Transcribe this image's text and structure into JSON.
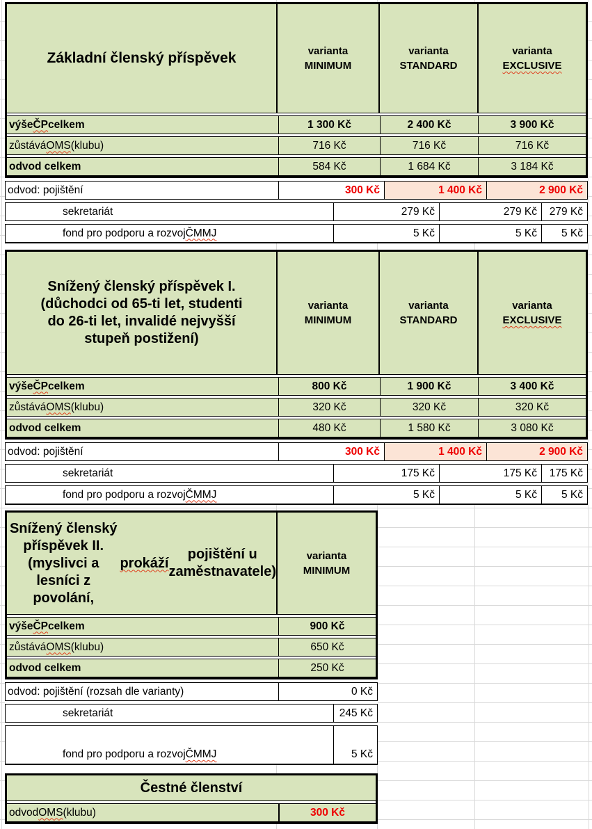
{
  "sheet": {
    "colors": {
      "green": "#d8e4bc",
      "peach": "#fce4d6",
      "red": "#ee0000",
      "grid": "#d9d9d9"
    },
    "currency_suffix": "Kč"
  },
  "tables": [
    {
      "name": "basic-fee",
      "title": "Základní členský příspěvek",
      "title_misspelled": [],
      "variants": [
        {
          "line1": "varianta",
          "line2": "MINIMUM",
          "misspelled": false
        },
        {
          "line1": "varianta",
          "line2": "STANDARD",
          "misspelled": false
        },
        {
          "line1": "varianta",
          "line2": "EXCLUSIVE",
          "misspelled": true
        }
      ],
      "green_rows": [
        {
          "label": "výše ČP celkem",
          "label_bold": true,
          "misspelled": [
            "ČP"
          ],
          "values": [
            "1 300 Kč",
            "2 400 Kč",
            "3 900 Kč"
          ],
          "values_bold": true
        },
        {
          "label": "zůstává OMS (klubu)",
          "label_bold": false,
          "misspelled": [
            "OMS"
          ],
          "values": [
            "716 Kč",
            "716 Kč",
            "716 Kč"
          ],
          "values_bold": false
        },
        {
          "label": "odvod celkem",
          "label_bold": true,
          "misspelled": [],
          "values": [
            "584 Kč",
            "1 684 Kč",
            "3 184 Kč"
          ],
          "values_bold": false
        }
      ],
      "white_rows": [
        {
          "label": "odvod: pojištění",
          "indent": false,
          "misspelled": [],
          "values": [
            "300 Kč",
            "1 400 Kč",
            "2 900 Kč"
          ],
          "red": true,
          "peach_cells": [
            1,
            2
          ],
          "tall": false
        },
        {
          "label": "sekretariát",
          "indent": true,
          "misspelled": [],
          "values": [
            "279 Kč",
            "279 Kč",
            "279 Kč"
          ],
          "red": false,
          "peach_cells": [],
          "tall": false
        },
        {
          "label": "fond pro podporu a rozvoj ČMMJ",
          "indent": true,
          "misspelled": [
            "ČMMJ"
          ],
          "values": [
            "5 Kč",
            "5 Kč",
            "5 Kč"
          ],
          "red": false,
          "peach_cells": [],
          "tall": false
        }
      ]
    },
    {
      "name": "reduced-fee-1",
      "title": "Snížený členský příspěvek I.\n(důchodci od 65-ti let, studenti\ndo 26-ti let, invalidé nejvyšší\nstupeň postižení)",
      "title_misspelled": [],
      "variants": [
        {
          "line1": "varianta",
          "line2": "MINIMUM",
          "misspelled": false
        },
        {
          "line1": "varianta",
          "line2": "STANDARD",
          "misspelled": false
        },
        {
          "line1": "varianta",
          "line2": "EXCLUSIVE",
          "misspelled": true
        }
      ],
      "green_rows": [
        {
          "label": "výše ČP celkem",
          "label_bold": true,
          "misspelled": [
            "ČP"
          ],
          "values": [
            "800 Kč",
            "1 900 Kč",
            "3 400 Kč"
          ],
          "values_bold": true
        },
        {
          "label": "zůstává OMS (klubu)",
          "label_bold": false,
          "misspelled": [
            "OMS"
          ],
          "values": [
            "320 Kč",
            "320 Kč",
            "320 Kč"
          ],
          "values_bold": false
        },
        {
          "label": "odvod celkem",
          "label_bold": true,
          "misspelled": [],
          "values": [
            "480 Kč",
            "1 580 Kč",
            "3 080 Kč"
          ],
          "values_bold": false
        }
      ],
      "white_rows": [
        {
          "label": "odvod: pojištění",
          "indent": false,
          "misspelled": [],
          "values": [
            "300 Kč",
            "1 400 Kč",
            "2 900 Kč"
          ],
          "red": true,
          "peach_cells": [
            1,
            2
          ],
          "tall": false
        },
        {
          "label": "sekretariát",
          "indent": true,
          "misspelled": [],
          "values": [
            "175 Kč",
            "175 Kč",
            "175 Kč"
          ],
          "red": false,
          "peach_cells": [],
          "tall": false
        },
        {
          "label": "fond pro podporu a rozvoj ČMMJ",
          "indent": true,
          "misspelled": [
            "ČMMJ"
          ],
          "values": [
            "5 Kč",
            "5 Kč",
            "5 Kč"
          ],
          "red": false,
          "peach_cells": [],
          "tall": false
        }
      ]
    },
    {
      "name": "reduced-fee-2",
      "title": "Snížený členský příspěvek II.\n(myslivci a lesníci z povolání,\nprokáží pojištění u\nzaměstnavatele)",
      "title_misspelled": [
        "prokáží"
      ],
      "variants": [
        {
          "line1": "varianta",
          "line2": "MINIMUM",
          "misspelled": false
        }
      ],
      "green_rows": [
        {
          "label": "výše ČP celkem",
          "label_bold": true,
          "misspelled": [
            "ČP"
          ],
          "values": [
            "900 Kč"
          ],
          "values_bold": true
        },
        {
          "label": "zůstává OMS (klubu)",
          "label_bold": false,
          "misspelled": [
            "OMS"
          ],
          "values": [
            "650 Kč"
          ],
          "values_bold": false
        },
        {
          "label": "odvod celkem",
          "label_bold": true,
          "misspelled": [],
          "values": [
            "250 Kč"
          ],
          "values_bold": false
        }
      ],
      "white_rows": [
        {
          "label": "odvod: pojištění (rozsah dle varianty)",
          "indent": false,
          "misspelled": [],
          "values": [
            "0 Kč"
          ],
          "red": false,
          "peach_cells": [],
          "tall": false
        },
        {
          "label": "sekretariát",
          "indent": true,
          "misspelled": [],
          "values": [
            "245 Kč"
          ],
          "red": false,
          "peach_cells": [],
          "tall": false
        },
        {
          "label": "fond pro podporu a rozvoj ČMMJ",
          "indent": true,
          "misspelled": [
            "ČMMJ"
          ],
          "values": [
            "5 Kč"
          ],
          "red": false,
          "peach_cells": [],
          "tall": true
        }
      ]
    }
  ],
  "honorary": {
    "name": "honorary-membership",
    "title": "Čestné členství",
    "title_misspelled": [],
    "row": {
      "label": "odvod OMS (klubu)",
      "misspelled": [
        "OMS"
      ],
      "value": "300 Kč",
      "red": true
    }
  }
}
